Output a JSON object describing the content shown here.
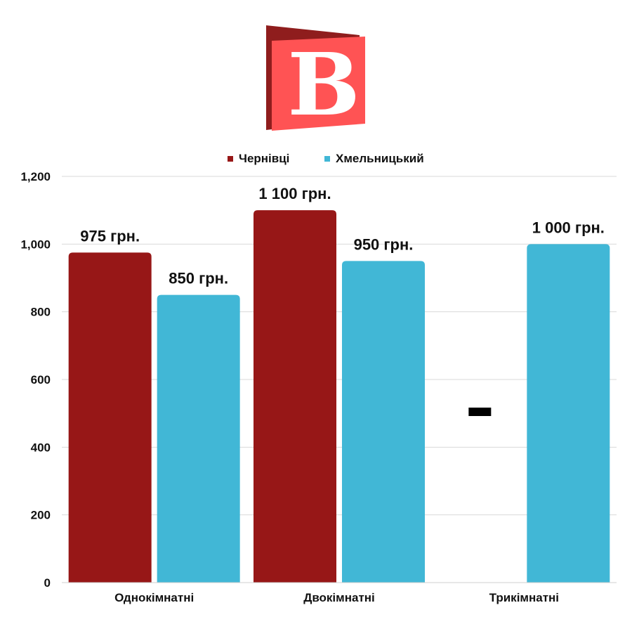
{
  "logo": {
    "letter": "B"
  },
  "chart_data": {
    "type": "bar",
    "categories": [
      "Однокімнатні",
      "Двокімнатні",
      "Трикімнатні"
    ],
    "series": [
      {
        "name": "Чернівці",
        "color": "#971717",
        "values": [
          975,
          1100,
          null
        ],
        "labels": [
          "975 грн.",
          "1 100 грн.",
          "-"
        ]
      },
      {
        "name": "Хмельницький",
        "color": "#41B7D6",
        "values": [
          850,
          950,
          1000
        ],
        "labels": [
          "850 грн.",
          "950 грн.",
          "1 000 грн."
        ]
      }
    ],
    "yticks": [
      "0",
      "200",
      "400",
      "600",
      "800",
      "1,000",
      "1,200"
    ],
    "ylim": [
      0,
      1200
    ],
    "grid": true,
    "legend_position": "top-center"
  }
}
